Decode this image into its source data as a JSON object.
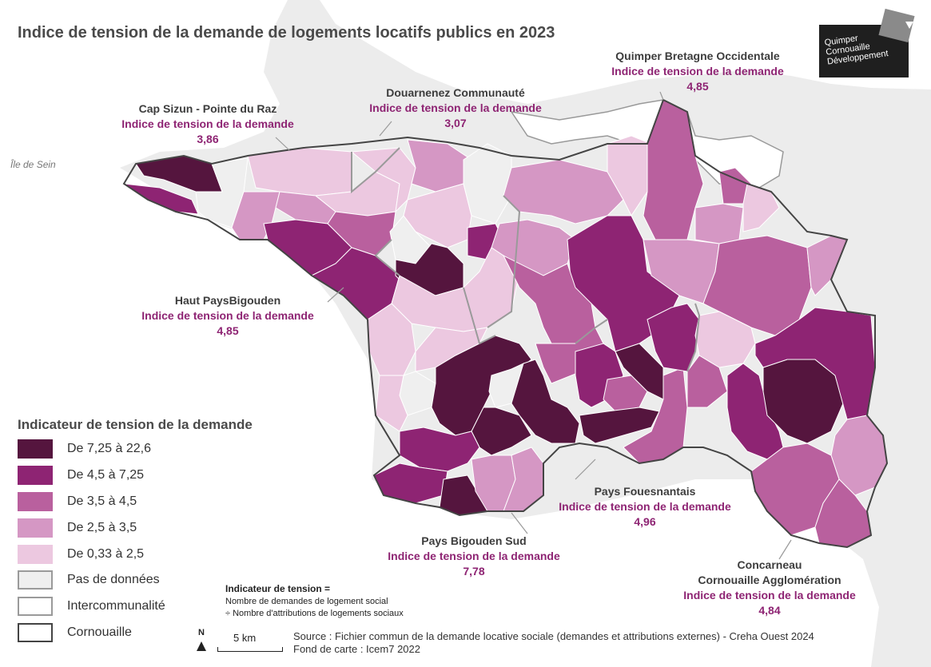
{
  "title": "Indice de tension de la demande de logements locatifs publics en 2023",
  "island_label": "Île de Sein",
  "logo": {
    "line1": "Quimper",
    "line2": "Cornouaille",
    "line3": "Développement"
  },
  "labels": {
    "cap_sizun": {
      "name": "Cap Sizun - Pointe du Raz",
      "indicator": "Indice de tension de la demande",
      "value": "3,86"
    },
    "douarnenez": {
      "name": "Douarnenez Communauté",
      "indicator": "Indice de tension de la demande",
      "value": "3,07"
    },
    "quimper_bo": {
      "name": "Quimper Bretagne Occidentale",
      "indicator": "Indice de tension de la demande",
      "value": "4,85"
    },
    "haut_pays": {
      "name": "Haut PaysBigouden",
      "indicator": "Indice de tension de la demande",
      "value": "4,85"
    },
    "fouesnantais": {
      "name": "Pays Fouesnantais",
      "indicator": "Indice de tension de la demande",
      "value": "4,96"
    },
    "bigouden_sud": {
      "name": "Pays Bigouden Sud",
      "indicator": "Indice de tension de la demande",
      "value": "7,78"
    },
    "concarneau": {
      "name1": "Concarneau",
      "name2": "Cornouaille Agglomération",
      "indicator": "Indice de tension de la demande",
      "value": "4,84"
    }
  },
  "legend": {
    "title": "Indicateur de tension de la demande",
    "classes": [
      {
        "label": "De 7,25 à 22,6",
        "color": "#55153e"
      },
      {
        "label": "De 4,5  à 7,25",
        "color": "#8e2473"
      },
      {
        "label": "De 3,5 à 4,5",
        "color": "#b9609e"
      },
      {
        "label": "De 2,5 à 3,5",
        "color": "#d597c4"
      },
      {
        "label": "De 0,33 à 2,5",
        "color": "#ecc8e0"
      },
      {
        "label": "Pas de données",
        "color": "#efefef"
      },
      {
        "label": "Intercommunalité",
        "color": "#ffffff"
      },
      {
        "label": "Cornouaille",
        "color": "#ffffff"
      }
    ]
  },
  "formula": {
    "title": "Indicateur de tension =",
    "line1": "Nombre de demandes de logement social",
    "line2": "÷ Nombre d'attributions de logements sociaux"
  },
  "scale": {
    "north": "N",
    "distance": "5 km"
  },
  "source": {
    "line1": "Source : Fichier commun de la demande locative sociale (demandes et attributions externes) - Creha Ouest 2024",
    "line2": "Fond de carte : Icem7 2022"
  }
}
